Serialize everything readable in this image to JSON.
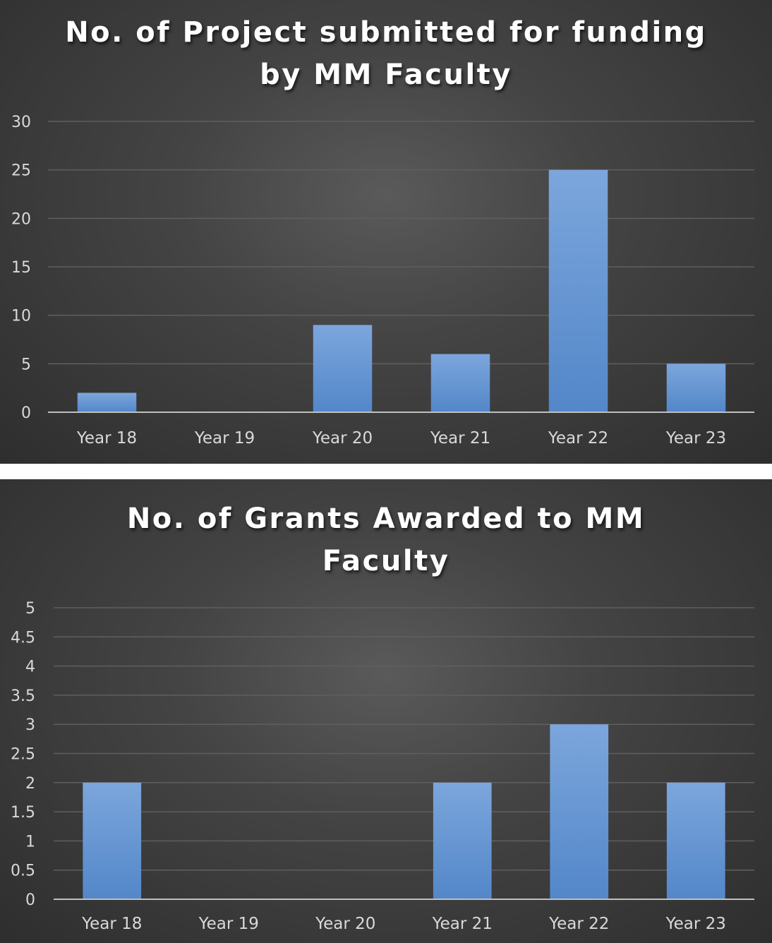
{
  "chart_data": [
    {
      "type": "bar",
      "title_lines": [
        "No. of Project submitted for funding",
        "by MM Faculty"
      ],
      "categories": [
        "Year 18",
        "Year 19",
        "Year 20",
        "Year 21",
        "Year 22",
        "Year 23"
      ],
      "values": [
        2,
        0,
        9,
        6,
        25,
        5
      ],
      "yticks": [
        "0",
        "5",
        "10",
        "15",
        "20",
        "25",
        "30"
      ],
      "ylim": [
        0,
        30
      ],
      "grid": true,
      "legend": "none",
      "bar_color": "#5b8fd0"
    },
    {
      "type": "bar",
      "title_lines": [
        "No. of Grants Awarded to MM",
        "Faculty"
      ],
      "categories": [
        "Year 18",
        "Year 19",
        "Year 20",
        "Year 21",
        "Year 22",
        "Year 23"
      ],
      "values": [
        2,
        0,
        0,
        2,
        3,
        2
      ],
      "yticks": [
        "0",
        "0.5",
        "1",
        "1.5",
        "2",
        "2.5",
        "3",
        "3.5",
        "4",
        "4.5",
        "5"
      ],
      "ylim": [
        0,
        5
      ],
      "grid": true,
      "legend": "none",
      "bar_color": "#5b8fd0"
    }
  ]
}
